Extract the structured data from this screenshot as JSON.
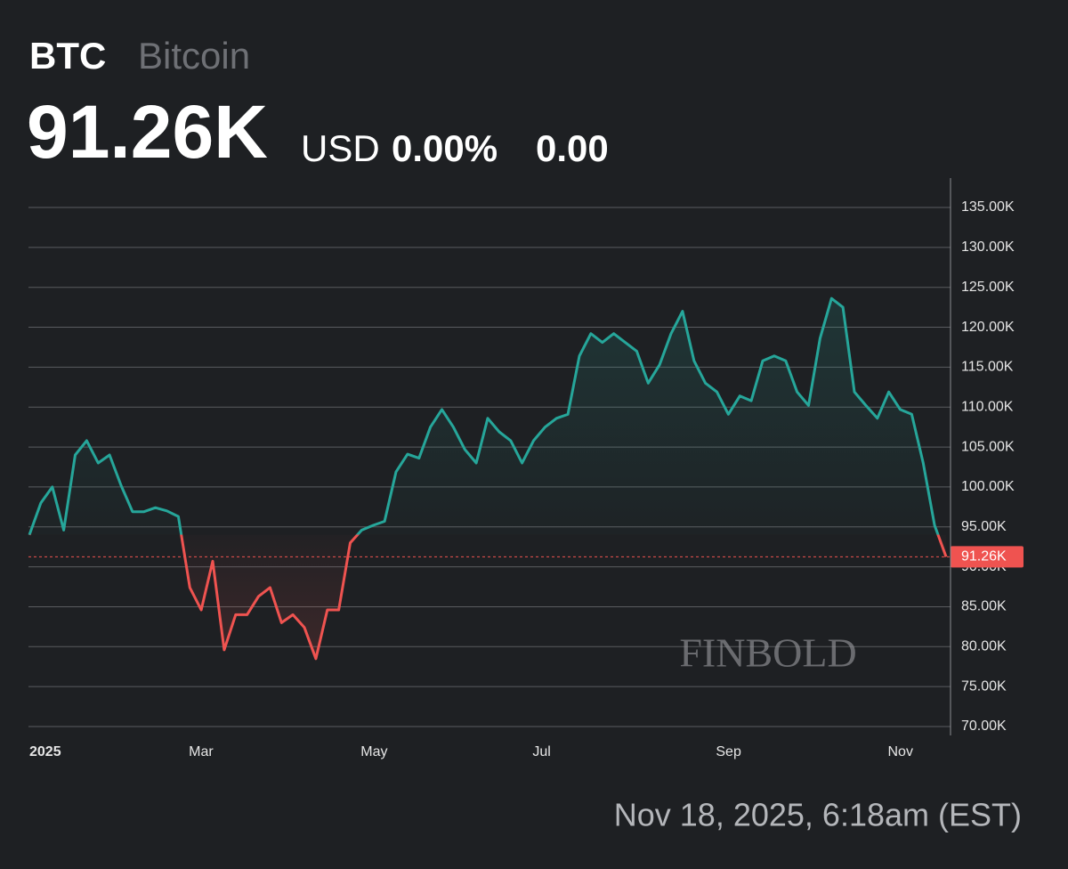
{
  "header": {
    "symbol": "BTC",
    "name": "Bitcoin",
    "price": "91.26K",
    "currency": "USD",
    "change_pct": "0.00%",
    "change": "0.00"
  },
  "footer": {
    "timestamp": "Nov 18, 2025, 6:18am (EST)"
  },
  "watermark": "FINBOLD",
  "chart_data": {
    "type": "line",
    "categories": [
      "2025",
      null,
      null,
      null,
      null,
      null,
      null,
      null,
      null,
      null,
      null,
      null,
      null,
      null,
      null,
      "Mar",
      null,
      null,
      null,
      null,
      null,
      null,
      null,
      null,
      null,
      null,
      null,
      null,
      null,
      null,
      "May",
      null,
      null,
      null,
      null,
      null,
      null,
      null,
      null,
      null,
      null,
      null,
      null,
      null,
      null,
      "Jul",
      null,
      null,
      null,
      null,
      null,
      null,
      null,
      null,
      null,
      null,
      null,
      null,
      null,
      null,
      null,
      "Sep",
      null,
      null,
      null,
      null,
      null,
      null,
      null,
      null,
      null,
      null,
      null,
      null,
      null,
      null,
      "Nov",
      null,
      null,
      null,
      null
    ],
    "series": [
      {
        "name": "BTC",
        "color": "#26a69a",
        "negative_color": "#ef5350",
        "values": [
          94000,
          98000,
          100000,
          94600,
          104000,
          105800,
          103000,
          104000,
          100200,
          96900,
          96900,
          97400,
          97000,
          96300,
          87400,
          84600,
          90700,
          79600,
          84000,
          84000,
          86300,
          87400,
          83000,
          84000,
          82400,
          78500,
          84600,
          84600,
          93000,
          94600,
          95200,
          95700,
          101900,
          104100,
          103600,
          107500,
          109700,
          107500,
          104700,
          103000,
          108600,
          106900,
          105800,
          103000,
          105800,
          107500,
          108600,
          109100,
          116400,
          119200,
          118100,
          119200,
          118100,
          117000,
          113000,
          115300,
          119200,
          122000,
          115800,
          113000,
          111900,
          109100,
          111400,
          110800,
          115800,
          116400,
          115800,
          111900,
          110200,
          118600,
          123600,
          122500,
          111900,
          110200,
          108600,
          111900,
          109700,
          109100,
          103000,
          95200,
          91260
        ]
      }
    ],
    "ylim": [
      70000,
      135000
    ],
    "yticks": [
      {
        "value": 70000,
        "label": "70.00K"
      },
      {
        "value": 75000,
        "label": "75.00K"
      },
      {
        "value": 80000,
        "label": "80.00K"
      },
      {
        "value": 85000,
        "label": "85.00K"
      },
      {
        "value": 90000,
        "label": "90.00K"
      },
      {
        "value": 95000,
        "label": "95.00K"
      },
      {
        "value": 100000,
        "label": "100.00K"
      },
      {
        "value": 105000,
        "label": "105.00K"
      },
      {
        "value": 110000,
        "label": "110.00K"
      },
      {
        "value": 115000,
        "label": "115.00K"
      },
      {
        "value": 120000,
        "label": "120.00K"
      },
      {
        "value": 125000,
        "label": "125.00K"
      },
      {
        "value": 130000,
        "label": "130.00K"
      },
      {
        "value": 135000,
        "label": "135.00K"
      }
    ],
    "grid": true
  }
}
